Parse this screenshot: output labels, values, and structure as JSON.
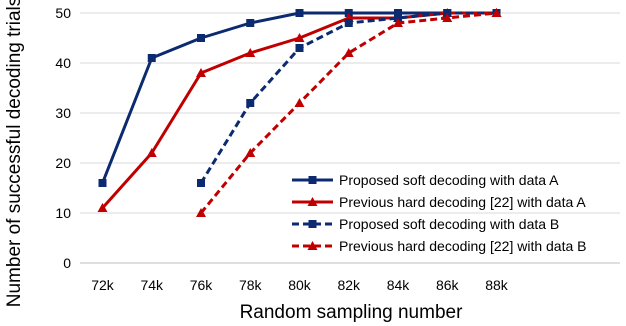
{
  "chart_data": {
    "type": "line",
    "xlabel": "Random sampling number",
    "ylabel": "Number of successful decoding trials",
    "categories": [
      "72k",
      "74k",
      "76k",
      "78k",
      "80k",
      "82k",
      "84k",
      "86k",
      "88k"
    ],
    "ylim": [
      0,
      50
    ],
    "yticks": [
      0,
      10,
      20,
      30,
      40,
      50
    ],
    "grid": true,
    "legend_position": "bottom-right",
    "series": [
      {
        "name": "Proposed soft decoding with data A",
        "color": "#0b2a6f",
        "dashed": false,
        "marker": "square",
        "values": [
          16,
          41,
          45,
          48,
          50,
          50,
          50,
          50,
          50
        ]
      },
      {
        "name": "Previous hard decoding [22] with data A",
        "color": "#c00000",
        "dashed": false,
        "marker": "triangle",
        "values": [
          11,
          22,
          38,
          42,
          45,
          49,
          49,
          50,
          50
        ]
      },
      {
        "name": "Proposed soft decoding with data B",
        "color": "#0b2a6f",
        "dashed": true,
        "marker": "square",
        "values": [
          null,
          null,
          16,
          32,
          43,
          48,
          49,
          50,
          50
        ]
      },
      {
        "name": "Previous hard decoding [22] with data B",
        "color": "#c00000",
        "dashed": true,
        "marker": "triangle",
        "values": [
          null,
          null,
          10,
          22,
          32,
          42,
          48,
          49,
          50
        ]
      }
    ]
  }
}
